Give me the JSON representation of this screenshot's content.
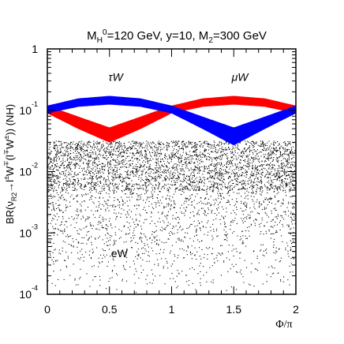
{
  "chart_data": {
    "type": "scatter",
    "title": {
      "parts": [
        {
          "text": "M",
          "style": "normal"
        },
        {
          "text": "H",
          "style": "sub"
        },
        {
          "text": "0",
          "style": "sup"
        },
        {
          "text": "=120 GeV, y=10, M",
          "style": "normal"
        },
        {
          "text": "2",
          "style": "sub"
        },
        {
          "text": "=300 GeV",
          "style": "normal"
        }
      ]
    },
    "ylabel": {
      "parts": [
        {
          "text": "BR(ν",
          "style": "normal"
        },
        {
          "text": "R2",
          "style": "sub"
        },
        {
          "text": "→l",
          "style": "normal"
        },
        {
          "text": "±",
          "style": "sup"
        },
        {
          "text": "W",
          "style": "normal"
        },
        {
          "text": "∓",
          "style": "sup"
        },
        {
          "text": "(l",
          "style": "normal"
        },
        {
          "text": "∓",
          "style": "sup"
        },
        {
          "text": "W",
          "style": "normal"
        },
        {
          "text": "±",
          "style": "sup"
        },
        {
          "text": ")) (NH)",
          "style": "normal"
        }
      ]
    },
    "xlabel": "Φ/π",
    "x_range": [
      0,
      2
    ],
    "y_range": [
      0.0001,
      1
    ],
    "y_scale": "log",
    "x_ticks": [
      {
        "value": 0,
        "label": "0"
      },
      {
        "value": 0.5,
        "label": "0.5"
      },
      {
        "value": 1,
        "label": "1"
      },
      {
        "value": 1.5,
        "label": "1.5"
      },
      {
        "value": 2,
        "label": "2"
      }
    ],
    "y_ticks": [
      {
        "value": 1,
        "base": "1",
        "exp": ""
      },
      {
        "value": 0.1,
        "base": "10",
        "exp": "-1"
      },
      {
        "value": 0.01,
        "base": "10",
        "exp": "-2"
      },
      {
        "value": 0.001,
        "base": "10",
        "exp": "-3"
      },
      {
        "value": 0.0001,
        "base": "10",
        "exp": "-4"
      }
    ],
    "grid": false,
    "series": [
      {
        "name": "τW",
        "color": "#0000ff",
        "label_position": {
          "x": 0.55,
          "y": 0.3
        },
        "band_top": [
          [
            0,
            0.118
          ],
          [
            0.25,
            0.155
          ],
          [
            0.5,
            0.17
          ],
          [
            0.75,
            0.155
          ],
          [
            1,
            0.118
          ],
          [
            1.25,
            0.078
          ],
          [
            1.5,
            0.052
          ],
          [
            1.75,
            0.078
          ],
          [
            2,
            0.118
          ]
        ],
        "band_bottom": [
          [
            0,
            0.09
          ],
          [
            0.25,
            0.115
          ],
          [
            0.5,
            0.125
          ],
          [
            0.75,
            0.115
          ],
          [
            1,
            0.09
          ],
          [
            1.25,
            0.05
          ],
          [
            1.5,
            0.027
          ],
          [
            1.75,
            0.05
          ],
          [
            2,
            0.09
          ]
        ]
      },
      {
        "name": "μW",
        "color": "#ff0000",
        "label_position": {
          "x": 1.55,
          "y": 0.3
        },
        "band_top": [
          [
            0,
            0.118
          ],
          [
            0.25,
            0.078
          ],
          [
            0.5,
            0.052
          ],
          [
            0.75,
            0.078
          ],
          [
            1,
            0.118
          ],
          [
            1.25,
            0.155
          ],
          [
            1.5,
            0.17
          ],
          [
            1.75,
            0.155
          ],
          [
            2,
            0.118
          ]
        ],
        "band_bottom": [
          [
            0,
            0.09
          ],
          [
            0.25,
            0.05
          ],
          [
            0.5,
            0.03
          ],
          [
            0.75,
            0.05
          ],
          [
            1,
            0.09
          ],
          [
            1.25,
            0.115
          ],
          [
            1.5,
            0.125
          ],
          [
            1.75,
            0.115
          ],
          [
            2,
            0.09
          ]
        ]
      },
      {
        "name": "eW",
        "color": "#000000",
        "label_position": {
          "x": 0.58,
          "y": 0.0004
        },
        "dense_range": [
          0.005,
          0.032
        ],
        "sparse_range": [
          0.0001,
          0.005
        ]
      }
    ]
  }
}
